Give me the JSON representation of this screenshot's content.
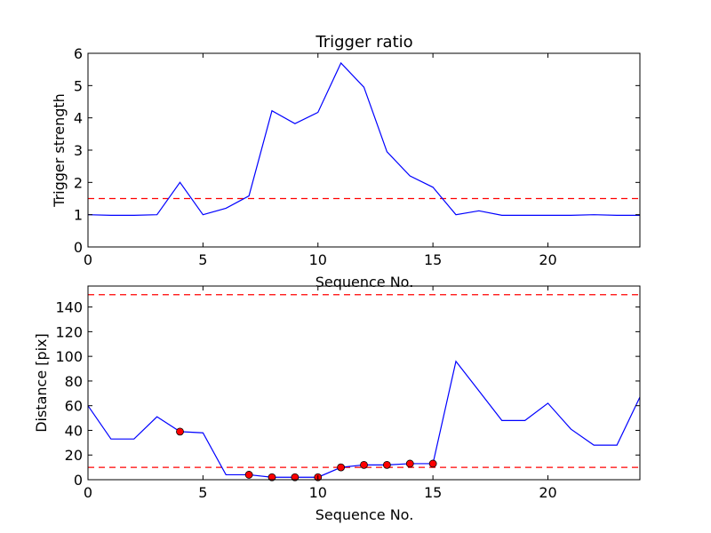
{
  "chart_data": [
    {
      "type": "line",
      "title": "Trigger ratio",
      "xlabel": "Sequence No.",
      "ylabel": "Trigger strength",
      "xlim": [
        0,
        24
      ],
      "ylim": [
        0,
        6
      ],
      "xticks": [
        0,
        5,
        10,
        15,
        20
      ],
      "yticks": [
        0,
        1,
        2,
        3,
        4,
        5,
        6
      ],
      "grid": false,
      "series": [
        {
          "color": "#0000ff",
          "x": [
            0,
            1,
            2,
            3,
            4,
            5,
            6,
            7,
            8,
            9,
            10,
            11,
            12,
            13,
            14,
            15,
            16,
            17,
            18,
            19,
            20,
            21,
            22,
            23,
            24
          ],
          "y": [
            1.0,
            0.98,
            0.98,
            1.0,
            2.0,
            1.0,
            1.2,
            1.58,
            4.22,
            3.82,
            4.17,
            5.7,
            4.95,
            2.95,
            2.2,
            1.85,
            1.0,
            1.12,
            0.98,
            0.98,
            0.98,
            0.98,
            1.0,
            0.98,
            0.98
          ]
        }
      ],
      "hlines": [
        {
          "y": 1.5,
          "color": "#ff0000",
          "style": "dashed"
        }
      ]
    },
    {
      "type": "line",
      "title": "",
      "xlabel": "Sequence No.",
      "ylabel": "Distance [pix]",
      "xlim": [
        0,
        24
      ],
      "ylim": [
        0,
        157
      ],
      "xticks": [
        0,
        5,
        10,
        15,
        20
      ],
      "yticks": [
        0,
        20,
        40,
        60,
        80,
        100,
        120,
        140
      ],
      "grid": false,
      "series": [
        {
          "color": "#0000ff",
          "x": [
            0,
            1,
            2,
            3,
            4,
            5,
            6,
            7,
            8,
            9,
            10,
            11,
            12,
            13,
            14,
            15,
            16,
            17,
            18,
            19,
            20,
            21,
            22,
            23,
            24
          ],
          "y": [
            60,
            33,
            33,
            51,
            39,
            38,
            4,
            4,
            2,
            2,
            2,
            10,
            12,
            12,
            13,
            13,
            96,
            72,
            48,
            48,
            62,
            41,
            28,
            28,
            67
          ]
        }
      ],
      "markers": {
        "color": "#ff0000",
        "x": [
          4,
          7,
          8,
          9,
          10,
          11,
          12,
          13,
          14,
          15
        ],
        "y": [
          39,
          4,
          2,
          2,
          2,
          10,
          12,
          12,
          13,
          13
        ]
      },
      "hlines": [
        {
          "y": 150,
          "color": "#ff0000",
          "style": "dashed"
        },
        {
          "y": 10,
          "color": "#ff0000",
          "style": "dashed"
        }
      ]
    }
  ]
}
